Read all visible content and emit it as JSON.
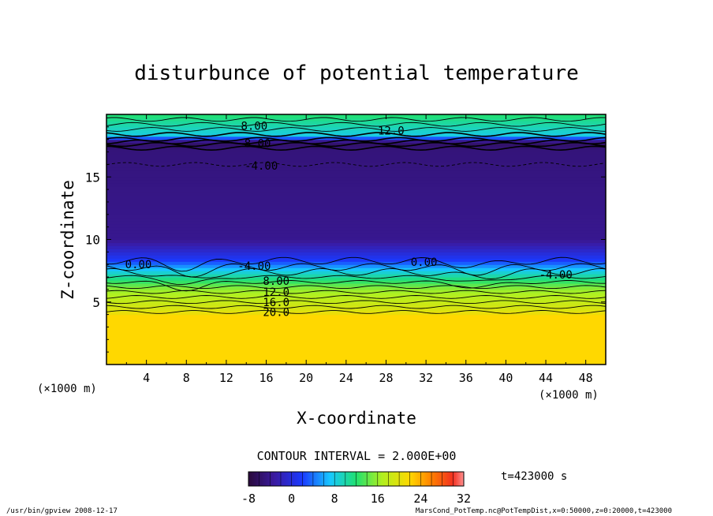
{
  "chart_data": {
    "type": "heatmap",
    "title": "disturbunce of potential temperature",
    "xlabel": "X-coordinate",
    "ylabel": "Z-coordinate",
    "x_unit_left": "(×1000 m)",
    "x_unit_right": "(×1000 m)",
    "xlim": [
      0,
      50
    ],
    "ylim": [
      0,
      20
    ],
    "x_ticks": [
      4,
      8,
      12,
      16,
      20,
      24,
      28,
      32,
      36,
      40,
      44,
      48
    ],
    "y_ticks": [
      5,
      10,
      15
    ],
    "profile": {
      "z": [
        0,
        4,
        4.2,
        6,
        7.5,
        8.3,
        10,
        14,
        17.2,
        17.8,
        18.3,
        20
      ],
      "value": [
        22,
        22,
        20,
        16,
        8,
        2,
        -4,
        -4.5,
        -5,
        -6,
        8,
        12
      ]
    },
    "contour_labels": [
      {
        "text": "8.00",
        "x": 14.8,
        "z": 19.1
      },
      {
        "text": "12.0",
        "x": 28.5,
        "z": 18.7
      },
      {
        "text": "-8.00",
        "x": 14.8,
        "z": 17.7
      },
      {
        "text": "-4.00",
        "x": 15.5,
        "z": 15.9
      },
      {
        "text": "0.00",
        "x": 3.2,
        "z": 8.0
      },
      {
        "text": "-4.00",
        "x": 14.8,
        "z": 7.9
      },
      {
        "text": "0.00",
        "x": 31.8,
        "z": 8.2
      },
      {
        "text": "-4.00",
        "x": 45.0,
        "z": 7.2
      },
      {
        "text": "8.00",
        "x": 17.0,
        "z": 6.7
      },
      {
        "text": "12.0",
        "x": 17.0,
        "z": 5.8
      },
      {
        "text": "16.0",
        "x": 17.0,
        "z": 5.0
      },
      {
        "text": "20.0",
        "x": 17.0,
        "z": 4.2
      }
    ]
  },
  "colorbar": {
    "title": "CONTOUR INTERVAL = 2.000E+00",
    "ticks": [
      "-8",
      "0",
      "8",
      "16",
      "24",
      "32"
    ],
    "range": [
      -8,
      32
    ]
  },
  "time_label": "t=423000 s",
  "footer": {
    "left": "/usr/bin/gpview  2008-12-17",
    "right": "MarsCond_PotTemp.nc@PotTempDist,x=0:50000,z=0:20000,t=423000"
  }
}
